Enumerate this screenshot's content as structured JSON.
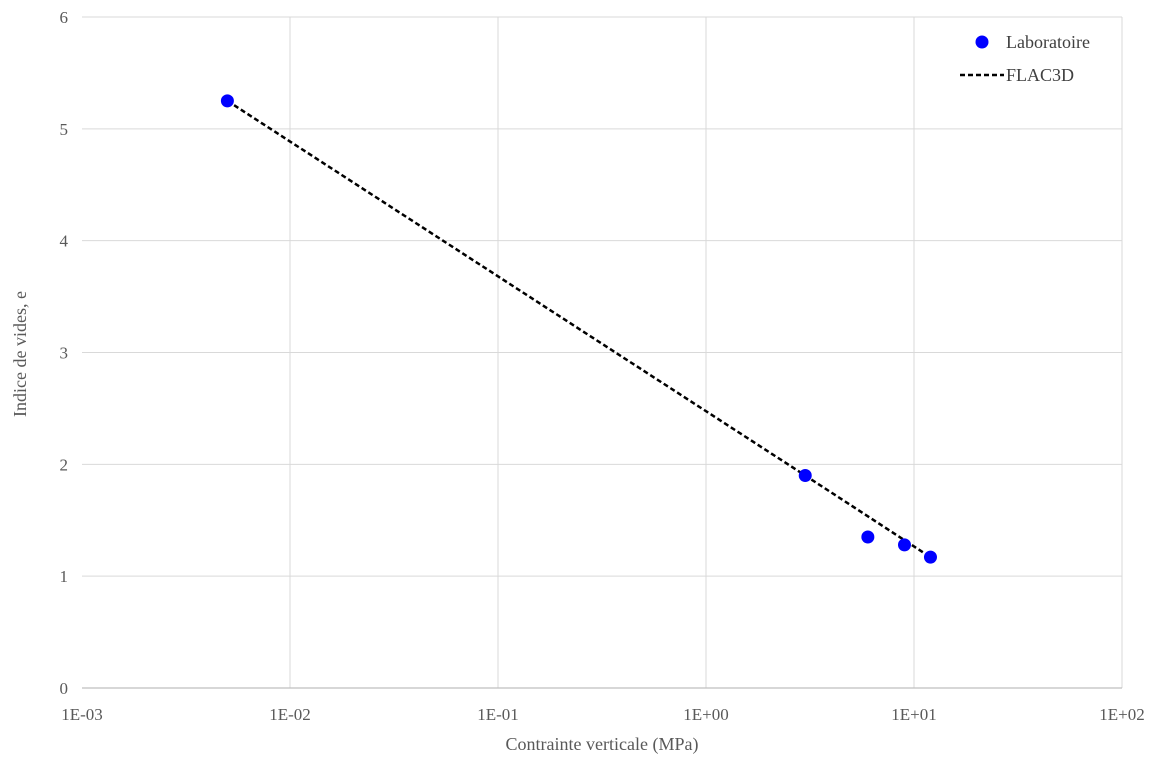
{
  "chart_data": {
    "type": "scatter",
    "title": "",
    "xlabel": "Contrainte verticale (MPa)",
    "ylabel": "Indice de vides, e",
    "x_scale": "log",
    "xlim": [
      0.001,
      100
    ],
    "ylim": [
      0,
      6
    ],
    "x_tick_labels": [
      "1E-03",
      "1E-02",
      "1E-01",
      "1E+00",
      "1E+01",
      "1E+02"
    ],
    "y_tick_labels": [
      "0",
      "1",
      "2",
      "3",
      "4",
      "5",
      "6"
    ],
    "grid": true,
    "legend_position": "top-right",
    "series": [
      {
        "name": "Laboratoire",
        "style": "markers",
        "color": "#0000FF",
        "x": [
          0.005,
          3,
          6,
          9,
          12
        ],
        "y": [
          5.25,
          1.9,
          1.35,
          1.28,
          1.17
        ]
      },
      {
        "name": "FLAC3D",
        "style": "dashed-line",
        "color": "#000000",
        "x": [
          0.005,
          3,
          12
        ],
        "y": [
          5.25,
          1.9,
          1.17
        ]
      }
    ]
  }
}
